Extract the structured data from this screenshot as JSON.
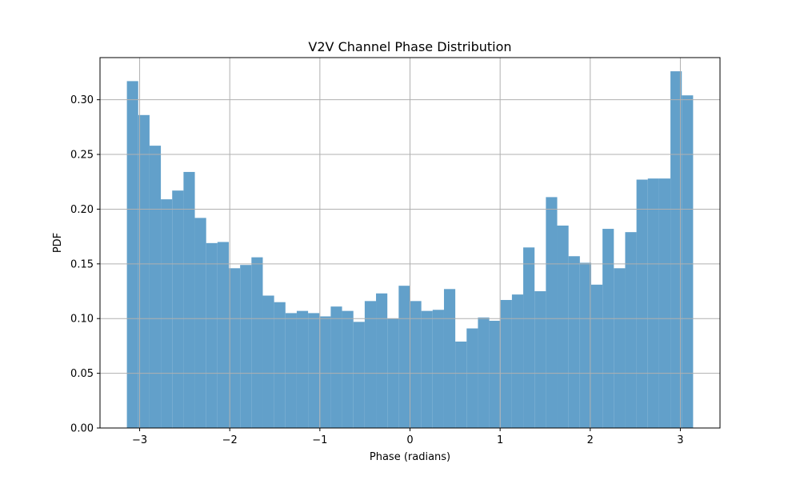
{
  "chart_data": {
    "type": "bar",
    "title": "V2V Channel Phase Distribution",
    "xlabel": "Phase (radians)",
    "ylabel": "PDF",
    "xlim": [
      -3.44,
      3.44
    ],
    "ylim": [
      0,
      0.3385
    ],
    "grid": true,
    "bar_color": "#62a0ca",
    "xticks": [
      -3,
      -2,
      -1,
      0,
      1,
      2,
      3
    ],
    "xtick_labels": [
      "−3",
      "−2",
      "−1",
      "0",
      "1",
      "2",
      "3"
    ],
    "yticks": [
      0.0,
      0.05,
      0.1,
      0.15,
      0.2,
      0.25,
      0.3
    ],
    "ytick_labels": [
      "0.00",
      "0.05",
      "0.10",
      "0.15",
      "0.20",
      "0.25",
      "0.30"
    ],
    "bin_range": [
      -3.14159,
      3.14159
    ],
    "bins": 50,
    "values": [
      0.317,
      0.286,
      0.258,
      0.209,
      0.217,
      0.234,
      0.192,
      0.169,
      0.17,
      0.146,
      0.149,
      0.156,
      0.121,
      0.115,
      0.105,
      0.107,
      0.105,
      0.102,
      0.111,
      0.107,
      0.097,
      0.116,
      0.123,
      0.1,
      0.13,
      0.116,
      0.107,
      0.108,
      0.127,
      0.079,
      0.091,
      0.101,
      0.098,
      0.117,
      0.122,
      0.165,
      0.125,
      0.211,
      0.185,
      0.157,
      0.151,
      0.131,
      0.182,
      0.146,
      0.179,
      0.227,
      0.228,
      0.228,
      0.326,
      0.304
    ]
  }
}
